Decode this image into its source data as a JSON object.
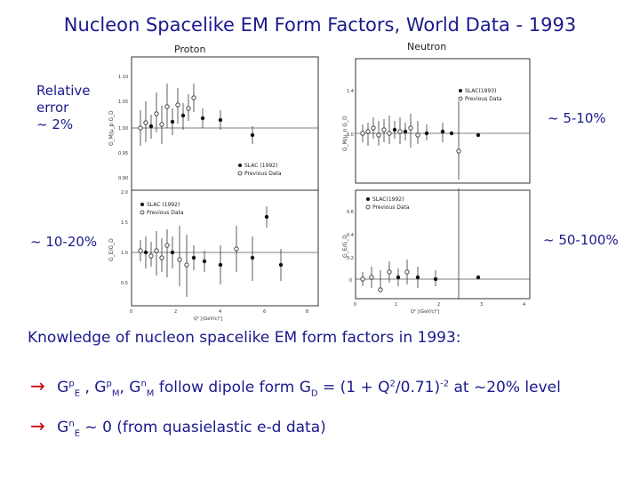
{
  "slide": {
    "title": "Nucleon Spacelike EM Form Factors, World Data - 1993",
    "left_notes": {
      "top_lines": [
        "Relative",
        "error",
        "~ 2%"
      ],
      "bottom": "~ 10-20%"
    },
    "right_notes": {
      "top": "~ 5-10%",
      "bottom": "~ 50-100%"
    },
    "knowledge_heading": "Knowledge of nucleon spacelike EM form factors in 1993:",
    "bullet1": {
      "arrow": "→",
      "g1": "G",
      "g1_sup": "p",
      "g1_sub": "E",
      "comma1": " , ",
      "g2": "G",
      "g2_sup": "p",
      "g2_sub": "M",
      "comma2": ", ",
      "g3": "G",
      "g3_sup": "n",
      "g3_sub": "M",
      "text_a": " follow dipole form G",
      "gd_sub": "D",
      "text_b": " = (1 + Q",
      "q_sup": "2",
      "text_c": "/0.71)",
      "exp_sup": "-2",
      "text_d": " at ~20% level"
    },
    "bullet2": {
      "arrow": "→",
      "g": "G",
      "g_sup": "n",
      "g_sub": "E",
      "text": " ~ 0  (from quasielastic e-d data)"
    }
  },
  "figure": {
    "proton_label": "Proton",
    "neutron_label": "Neutron",
    "tl_ylabel": "G_M/μ_p G_D",
    "tl_ticks": [
      "1.10",
      "1.05",
      "1.00",
      "0.95",
      "0.90"
    ],
    "tl_legend": [
      "SLAC (1992)",
      "Previous Data"
    ],
    "bl_ylabel": "G_E/G_D",
    "bl_ticks": [
      "2.0",
      "1.5",
      "1.0",
      "0.5"
    ],
    "bl_legend": [
      "SLAC (1992)",
      "Previous Data"
    ],
    "bl_xticks": [
      "0",
      "2",
      "4",
      "6",
      "8"
    ],
    "bl_xlabel": "Q² [(GeV/c)²]",
    "tr_ylabel": "G_M/μ_n G_D",
    "tr_ticks": [
      "1.4",
      "1.0"
    ],
    "tr_legend": [
      "SLAC(1993)",
      "Previous Data"
    ],
    "br_ylabel": "G_E/G_D",
    "br_ticks": [
      "0.6",
      "0.4",
      "0.2",
      "0"
    ],
    "br_legend": [
      "SLAC(1992)",
      "Previous Data"
    ],
    "br_xticks": [
      "0",
      "1",
      "2",
      "3",
      "4"
    ],
    "br_xlabel": "Q²   [(GeV/c)²]"
  }
}
